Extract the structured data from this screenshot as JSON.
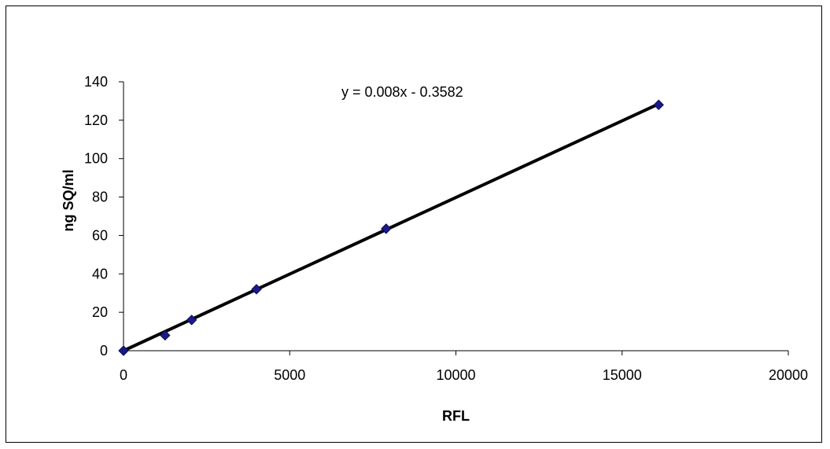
{
  "chart_data": {
    "type": "scatter",
    "title": "",
    "xlabel": "RFL",
    "ylabel": "ng SQ/ml",
    "xlim": [
      0,
      20000
    ],
    "ylim": [
      0,
      140
    ],
    "x_ticks": [
      0,
      5000,
      10000,
      15000,
      20000
    ],
    "y_ticks": [
      0,
      20,
      40,
      60,
      80,
      100,
      120,
      140
    ],
    "grid": false,
    "legend": "none",
    "series": [
      {
        "marker": "diamond",
        "color": "#1a1a8c",
        "x": [
          0,
          1250,
          2050,
          4000,
          7900,
          16100
        ],
        "y": [
          0,
          8,
          16,
          32,
          63.5,
          128
        ]
      }
    ],
    "trendline": {
      "type": "linear",
      "slope": 0.008,
      "intercept": -0.3582,
      "color": "#000000",
      "label": "y = 0.008x - 0.3582"
    }
  }
}
